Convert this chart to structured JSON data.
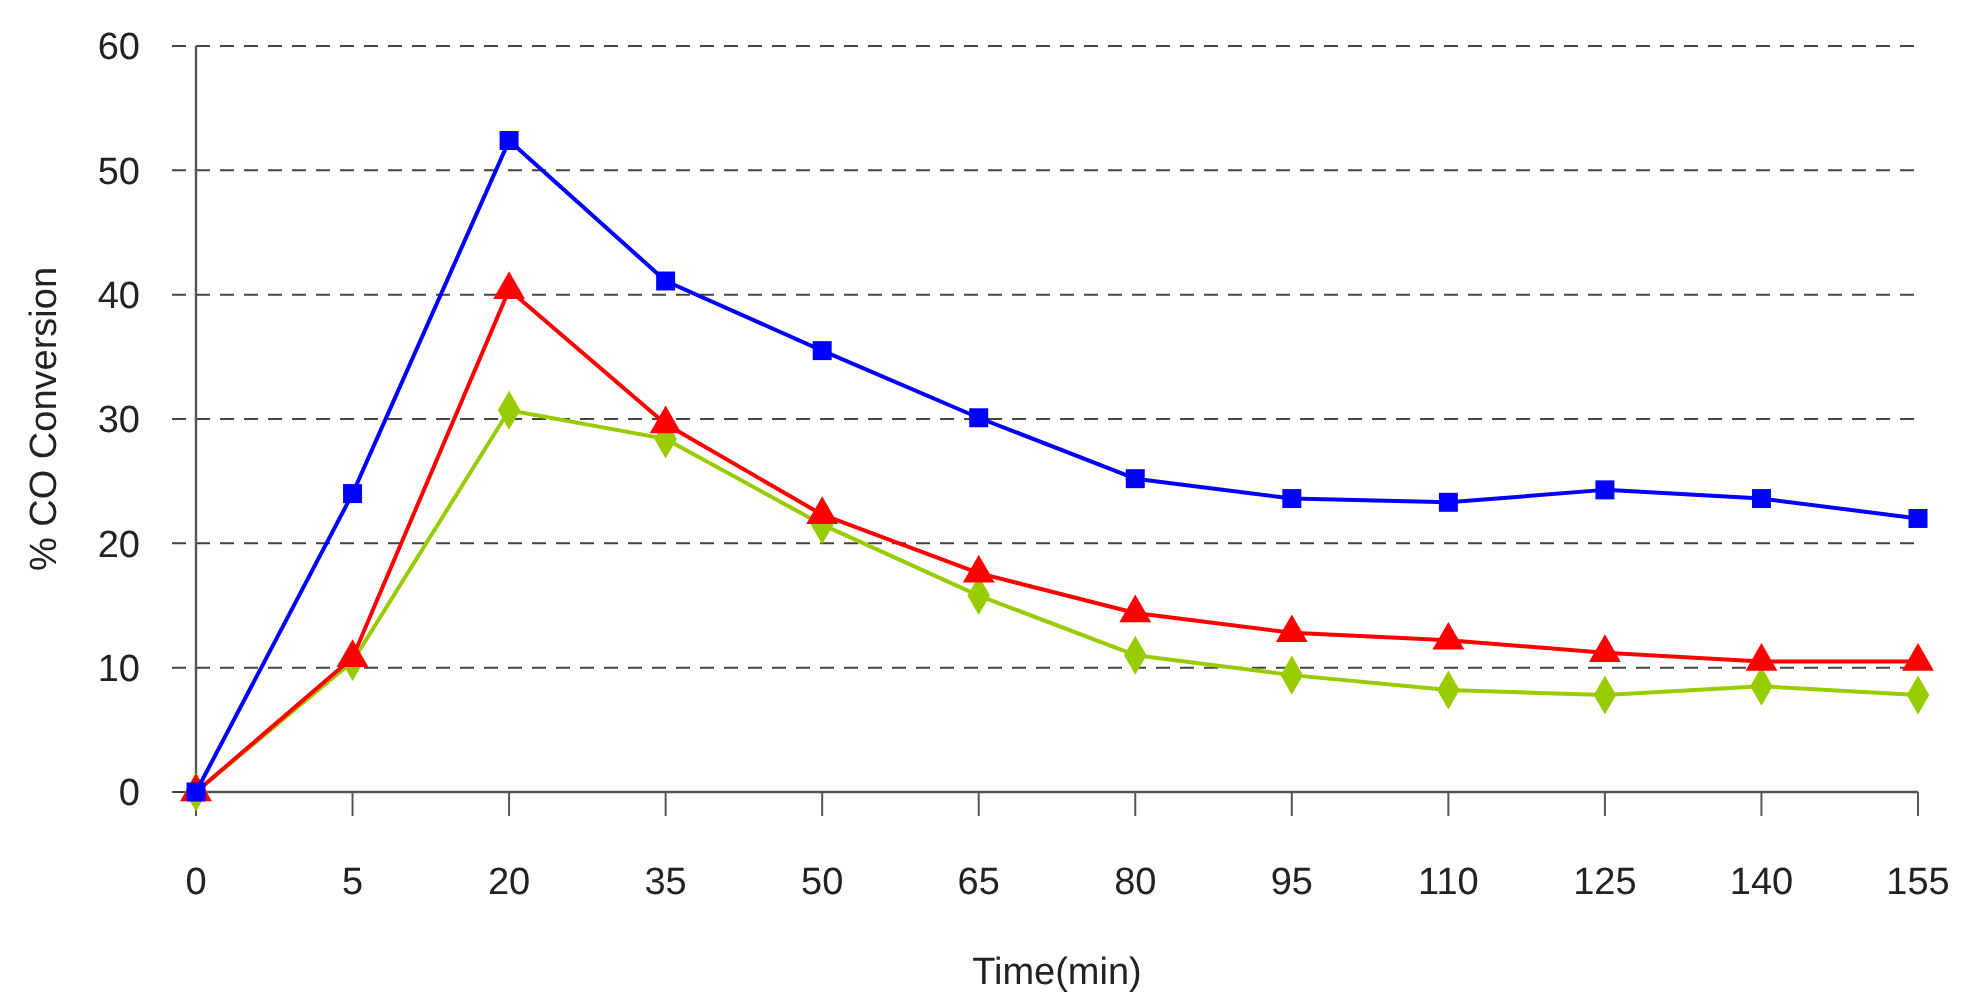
{
  "chart_data": {
    "type": "line",
    "xlabel": "Time(min)",
    "ylabel": "% CO Conversion",
    "categories": [
      "0",
      "5",
      "20",
      "35",
      "50",
      "65",
      "80",
      "95",
      "110",
      "125",
      "140",
      "155"
    ],
    "ylim": [
      0,
      60
    ],
    "yticks": [
      0,
      10,
      20,
      30,
      40,
      50,
      60
    ],
    "grid": "y",
    "line_style": "solid",
    "series": [
      {
        "color": "#0000ff",
        "marker": "square",
        "values": [
          0,
          24.0,
          52.4,
          41.1,
          35.5,
          30.1,
          25.2,
          23.6,
          23.3,
          24.3,
          23.6,
          22.0
        ]
      },
      {
        "color": "#ff0000",
        "marker": "triangle",
        "values": [
          0,
          10.8,
          40.4,
          29.6,
          22.3,
          17.6,
          14.4,
          12.8,
          12.2,
          11.2,
          10.5,
          10.5
        ]
      },
      {
        "color": "#99cc00",
        "marker": "diamond",
        "values": [
          0,
          10.5,
          30.7,
          28.4,
          21.5,
          15.8,
          11.0,
          9.4,
          8.2,
          7.8,
          8.5,
          7.8
        ]
      }
    ]
  }
}
